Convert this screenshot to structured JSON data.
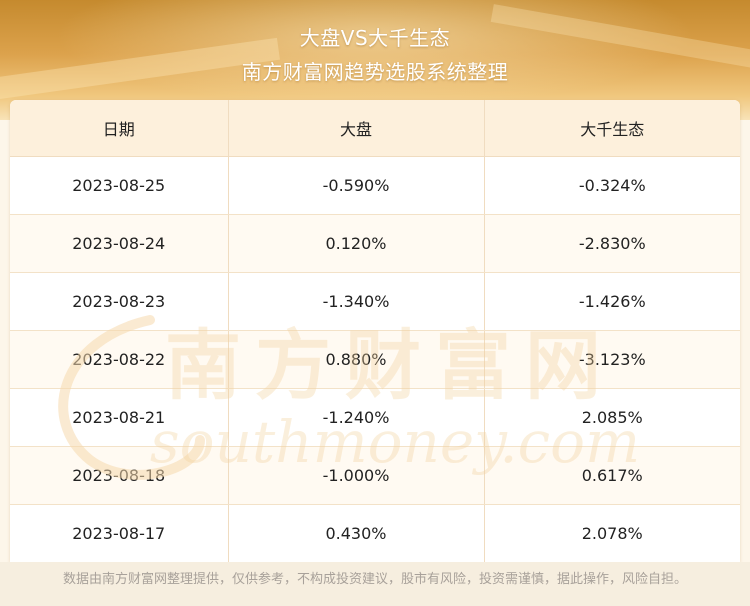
{
  "header": {
    "title": "大盘VS大千生态",
    "subtitle": "南方财富网趋势选股系统整理"
  },
  "table": {
    "columns": [
      "日期",
      "大盘",
      "大千生态"
    ],
    "rows": [
      [
        "2023-08-25",
        "-0.590%",
        "-0.324%"
      ],
      [
        "2023-08-24",
        "0.120%",
        "-2.830%"
      ],
      [
        "2023-08-23",
        "-1.340%",
        "-1.426%"
      ],
      [
        "2023-08-22",
        "0.880%",
        "-3.123%"
      ],
      [
        "2023-08-21",
        "-1.240%",
        "2.085%"
      ],
      [
        "2023-08-18",
        "-1.000%",
        "0.617%"
      ],
      [
        "2023-08-17",
        "0.430%",
        "2.078%"
      ]
    ]
  },
  "watermark": {
    "chinese": "南方财富网",
    "english": "southmoney.com"
  },
  "footer": {
    "disclaimer": "数据由南方财富网整理提供，仅供参考，不构成投资建议，股市有风险，投资需谨慎，据此操作，风险自担。"
  },
  "colors": {
    "header_gold": "#dca24c",
    "header_row_bg": "#fdf0dc",
    "grid_line": "#f0dcc0",
    "watermark": "#f5d9ad"
  }
}
